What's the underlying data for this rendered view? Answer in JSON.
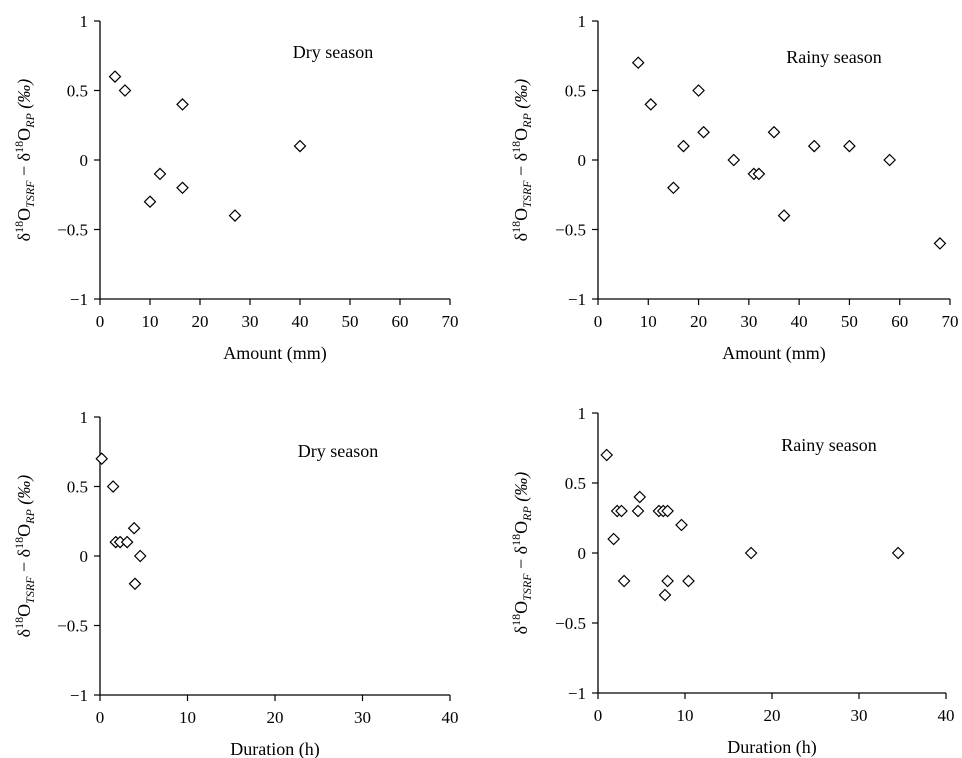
{
  "y_axis_label": {
    "delta": "δ",
    "mass": "18",
    "element": "O",
    "sub1": "TSRF",
    "minus": " − ",
    "sub2": "RP",
    "unit": " (‰)"
  },
  "chart_data": [
    {
      "type": "scatter",
      "title": "Dry season",
      "xlabel": "Amount (mm)",
      "xlim": [
        0,
        70
      ],
      "ylim": [
        -1,
        1
      ],
      "xticks": [
        "0",
        "10",
        "20",
        "30",
        "40",
        "50",
        "60",
        "70"
      ],
      "yticks": [
        "1",
        "0.5",
        "0",
        "−0.5",
        "−1"
      ],
      "marker": "open-diamond",
      "points": [
        {
          "x": 3,
          "y": 0.6
        },
        {
          "x": 5,
          "y": 0.5
        },
        {
          "x": 10,
          "y": -0.3
        },
        {
          "x": 12,
          "y": -0.1
        },
        {
          "x": 16.5,
          "y": 0.4
        },
        {
          "x": 16.5,
          "y": -0.2
        },
        {
          "x": 27,
          "y": -0.4
        },
        {
          "x": 40,
          "y": 0.1
        }
      ]
    },
    {
      "type": "scatter",
      "title": "Rainy season",
      "xlabel": "Amount (mm)",
      "xlim": [
        0,
        70
      ],
      "ylim": [
        -1,
        1
      ],
      "xticks": [
        "0",
        "10",
        "20",
        "30",
        "40",
        "50",
        "60",
        "70"
      ],
      "yticks": [
        "1",
        "0.5",
        "0",
        "−0.5",
        "−1"
      ],
      "marker": "open-diamond",
      "points": [
        {
          "x": 8,
          "y": 0.7
        },
        {
          "x": 10.5,
          "y": 0.4
        },
        {
          "x": 15,
          "y": -0.2
        },
        {
          "x": 17,
          "y": 0.1
        },
        {
          "x": 20,
          "y": 0.5
        },
        {
          "x": 21,
          "y": 0.2
        },
        {
          "x": 27,
          "y": 0
        },
        {
          "x": 31,
          "y": -0.1
        },
        {
          "x": 32,
          "y": -0.1
        },
        {
          "x": 35,
          "y": 0.2
        },
        {
          "x": 37,
          "y": -0.4
        },
        {
          "x": 43,
          "y": 0.1
        },
        {
          "x": 50,
          "y": 0.1
        },
        {
          "x": 58,
          "y": 0
        },
        {
          "x": 68,
          "y": -0.6
        }
      ]
    },
    {
      "type": "scatter",
      "title": "Dry season",
      "xlabel": "Duration (h)",
      "xlim": [
        0,
        40
      ],
      "ylim": [
        -1,
        1
      ],
      "xticks": [
        "0",
        "10",
        "20",
        "30",
        "40"
      ],
      "yticks": [
        "1",
        "0.5",
        "0",
        "−0.5",
        "−1"
      ],
      "marker": "open-diamond",
      "points": [
        {
          "x": 0.2,
          "y": 0.7
        },
        {
          "x": 1.5,
          "y": 0.5
        },
        {
          "x": 1.8,
          "y": 0.1
        },
        {
          "x": 2.3,
          "y": 0.1
        },
        {
          "x": 3.1,
          "y": 0.1
        },
        {
          "x": 3.9,
          "y": 0.2
        },
        {
          "x": 4.6,
          "y": 0
        },
        {
          "x": 4.0,
          "y": -0.2
        }
      ]
    },
    {
      "type": "scatter",
      "title": "Rainy season",
      "xlabel": "Duration (h)",
      "xlim": [
        0,
        40
      ],
      "ylim": [
        -1,
        1
      ],
      "xticks": [
        "0",
        "10",
        "20",
        "30",
        "40"
      ],
      "yticks": [
        "1",
        "0.5",
        "0",
        "−0.5",
        "−1"
      ],
      "marker": "open-diamond",
      "points": [
        {
          "x": 1,
          "y": 0.7
        },
        {
          "x": 1.8,
          "y": 0.1
        },
        {
          "x": 2.2,
          "y": 0.3
        },
        {
          "x": 2.7,
          "y": 0.3
        },
        {
          "x": 3,
          "y": -0.2
        },
        {
          "x": 4.6,
          "y": 0.3
        },
        {
          "x": 4.8,
          "y": 0.4
        },
        {
          "x": 7,
          "y": 0.3
        },
        {
          "x": 7.5,
          "y": 0.3
        },
        {
          "x": 8,
          "y": 0.3
        },
        {
          "x": 7.7,
          "y": -0.3
        },
        {
          "x": 8,
          "y": -0.2
        },
        {
          "x": 9.6,
          "y": 0.2
        },
        {
          "x": 10.4,
          "y": -0.2
        },
        {
          "x": 17.6,
          "y": 0
        },
        {
          "x": 34.5,
          "y": 0
        }
      ]
    }
  ]
}
